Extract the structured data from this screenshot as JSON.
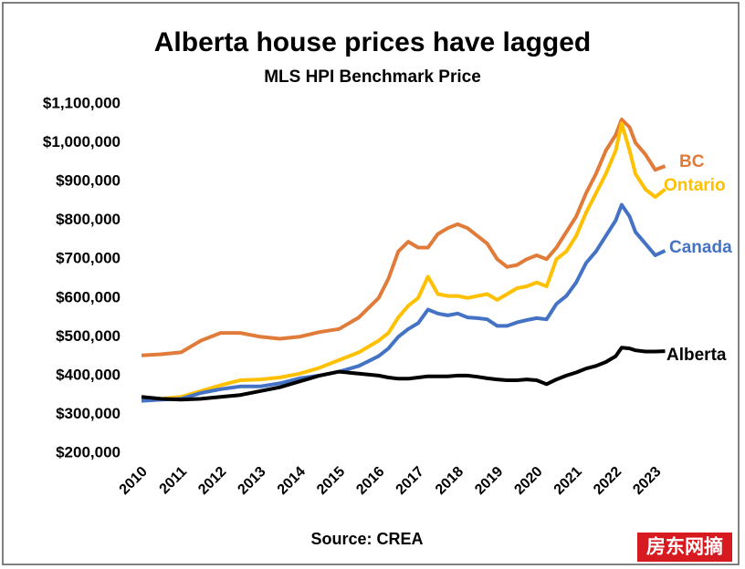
{
  "chart_data": {
    "type": "line",
    "title": "Alberta house prices have lagged",
    "subtitle": "MLS HPI Benchmark Price",
    "source": "Source: CREA",
    "watermark": "房东网摘",
    "x": [
      2010,
      2010.5,
      2011,
      2011.5,
      2012,
      2012.5,
      2013,
      2013.5,
      2014,
      2014.5,
      2015,
      2015.5,
      2016,
      2016.25,
      2016.5,
      2016.75,
      2017,
      2017.25,
      2017.5,
      2017.75,
      2018,
      2018.25,
      2018.5,
      2018.75,
      2019,
      2019.25,
      2019.5,
      2019.75,
      2020,
      2020.25,
      2020.5,
      2020.75,
      2021,
      2021.25,
      2021.5,
      2021.75,
      2022,
      2022.15,
      2022.35,
      2022.5,
      2022.75,
      2023,
      2023.25
    ],
    "series": [
      {
        "name": "BC",
        "color": "#e07b39",
        "values": [
          452000,
          455000,
          460000,
          490000,
          510000,
          510000,
          500000,
          495000,
          500000,
          512000,
          520000,
          550000,
          600000,
          650000,
          720000,
          745000,
          730000,
          730000,
          765000,
          780000,
          790000,
          780000,
          760000,
          740000,
          700000,
          680000,
          685000,
          700000,
          710000,
          700000,
          730000,
          770000,
          810000,
          870000,
          920000,
          980000,
          1020000,
          1060000,
          1040000,
          1000000,
          970000,
          930000,
          940000
        ]
      },
      {
        "name": "Ontario",
        "color": "#ffc000",
        "values": [
          340000,
          340000,
          345000,
          360000,
          375000,
          388000,
          390000,
          395000,
          405000,
          420000,
          440000,
          460000,
          490000,
          510000,
          550000,
          580000,
          600000,
          655000,
          610000,
          605000,
          605000,
          600000,
          605000,
          610000,
          595000,
          610000,
          625000,
          630000,
          640000,
          630000,
          700000,
          720000,
          760000,
          820000,
          870000,
          920000,
          980000,
          1050000,
          980000,
          920000,
          880000,
          860000,
          880000
        ]
      },
      {
        "name": "Canada",
        "color": "#4472c4",
        "values": [
          335000,
          338000,
          340000,
          355000,
          365000,
          372000,
          372000,
          380000,
          393000,
          400000,
          410000,
          425000,
          450000,
          470000,
          500000,
          520000,
          535000,
          570000,
          560000,
          555000,
          560000,
          550000,
          548000,
          545000,
          528000,
          528000,
          537000,
          543000,
          548000,
          545000,
          585000,
          605000,
          640000,
          690000,
          720000,
          760000,
          800000,
          840000,
          810000,
          770000,
          740000,
          710000,
          722000
        ]
      },
      {
        "name": "Alberta",
        "color": "#000000",
        "values": [
          345000,
          340000,
          338000,
          340000,
          345000,
          350000,
          360000,
          370000,
          385000,
          400000,
          410000,
          405000,
          400000,
          395000,
          392000,
          392000,
          395000,
          398000,
          398000,
          398000,
          400000,
          400000,
          397000,
          393000,
          390000,
          388000,
          388000,
          390000,
          388000,
          378000,
          390000,
          400000,
          408000,
          418000,
          425000,
          435000,
          450000,
          472000,
          470000,
          465000,
          462000,
          462000,
          463000
        ]
      }
    ],
    "xlim": [
      2010,
      2023.4
    ],
    "xticks": [
      2010,
      2011,
      2012,
      2013,
      2014,
      2015,
      2016,
      2017,
      2018,
      2019,
      2020,
      2021,
      2022,
      2023
    ],
    "ylim": [
      200000,
      1100000
    ],
    "yticks": [
      {
        "value": 200000,
        "label": "$200,000"
      },
      {
        "value": 300000,
        "label": "$300,000"
      },
      {
        "value": 400000,
        "label": "$400,000"
      },
      {
        "value": 500000,
        "label": "$500,000"
      },
      {
        "value": 600000,
        "label": "$600,000"
      },
      {
        "value": 700000,
        "label": "$700,000"
      },
      {
        "value": 800000,
        "label": "$800,000"
      },
      {
        "value": 900000,
        "label": "$900,000"
      },
      {
        "value": 1000000,
        "label": "$1,000,000"
      },
      {
        "value": 1100000,
        "label": "$1,100,000"
      }
    ],
    "grid": false
  }
}
